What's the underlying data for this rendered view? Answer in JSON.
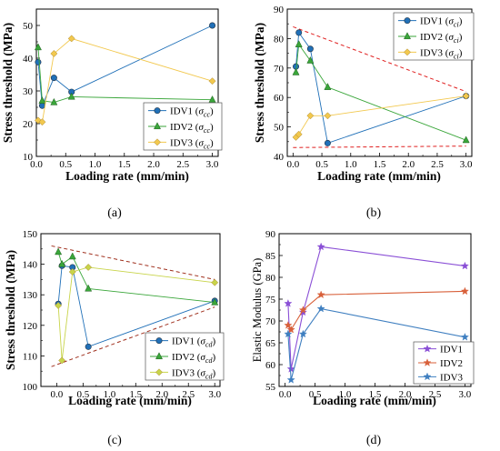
{
  "chart_data": [
    {
      "type": "scatter",
      "panel_label": "(a)",
      "xlabel": "Loading rate (mm/min)",
      "ylabel": "Stress threshold (MPa)",
      "xlim": [
        0,
        3.1
      ],
      "ylim": [
        10,
        55
      ],
      "xticks": [
        "0.0",
        "0.5",
        "1.0",
        "1.5",
        "2.0",
        "2.5",
        "3.0"
      ],
      "yticks": [
        "10",
        "20",
        "30",
        "40",
        "50"
      ],
      "legend_position": "bottom-right",
      "series": [
        {
          "name": "IDV1",
          "sub": "cc",
          "color": "#2070b8",
          "marker": "circle",
          "x": [
            0.03,
            0.1,
            0.3,
            0.6,
            3.0
          ],
          "y": [
            38.8,
            25.5,
            34,
            29.7,
            50
          ]
        },
        {
          "name": "IDV2",
          "sub": "cc",
          "color": "#3aa63a",
          "marker": "triangle",
          "x": [
            0.03,
            0.1,
            0.3,
            0.6,
            3.0
          ],
          "y": [
            43.3,
            27,
            26.5,
            28.2,
            27.3
          ]
        },
        {
          "name": "IDV3",
          "sub": "cc",
          "color": "#f2c84e",
          "marker": "diamond",
          "x": [
            0.03,
            0.1,
            0.3,
            0.6,
            3.0
          ],
          "y": [
            21,
            20.5,
            41.4,
            46,
            33
          ]
        }
      ]
    },
    {
      "type": "scatter",
      "panel_label": "(b)",
      "xlabel": "Loading rate (mm/min)",
      "ylabel": "Stress threshold (MPa)",
      "xlim": [
        -0.1,
        3.1
      ],
      "ylim": [
        40,
        90
      ],
      "xticks": [
        "0.0",
        "0.5",
        "1.0",
        "1.5",
        "2.0",
        "2.5",
        "3.0"
      ],
      "yticks": [
        "40",
        "50",
        "60",
        "70",
        "80",
        "90"
      ],
      "legend_position": "top-right",
      "series": [
        {
          "name": "IDV1",
          "sub": "ci",
          "color": "#2070b8",
          "marker": "circle",
          "x": [
            0.05,
            0.1,
            0.3,
            0.6,
            3.0
          ],
          "y": [
            70.5,
            82,
            76.5,
            44.5,
            60.5
          ]
        },
        {
          "name": "IDV2",
          "sub": "ci",
          "color": "#3aa63a",
          "marker": "triangle",
          "x": [
            0.05,
            0.1,
            0.3,
            0.6,
            3.0
          ],
          "y": [
            68.5,
            78,
            72.5,
            63.5,
            45.5
          ]
        },
        {
          "name": "IDV3",
          "sub": "ci",
          "color": "#f2c84e",
          "marker": "diamond",
          "x": [
            0.05,
            0.1,
            0.3,
            0.6,
            3.0
          ],
          "y": [
            46.5,
            47.5,
            53.8,
            53.8,
            60.5
          ]
        }
      ],
      "bounds": [
        {
          "x": [
            0.0,
            3.0
          ],
          "y": [
            84,
            62
          ]
        },
        {
          "x": [
            0.0,
            3.0
          ],
          "y": [
            43,
            43.5
          ]
        }
      ]
    },
    {
      "type": "scatter",
      "panel_label": "(c)",
      "xlabel": "Loading rate (mm/min)",
      "ylabel": "Stress threshold (MPa)",
      "xlim": [
        -0.3,
        3.1
      ],
      "ylim": [
        100,
        150
      ],
      "xticks": [
        "0.0",
        "0.5",
        "1.0",
        "1.5",
        "2.0",
        "2.5",
        "3.0"
      ],
      "yticks": [
        "100",
        "110",
        "120",
        "130",
        "140",
        "150"
      ],
      "legend_position": "bottom-right",
      "series": [
        {
          "name": "IDV1",
          "sub": "cd",
          "color": "#2070b8",
          "marker": "circle",
          "x": [
            0.03,
            0.1,
            0.3,
            0.6,
            3.0
          ],
          "y": [
            127,
            139.5,
            139,
            113,
            128
          ]
        },
        {
          "name": "IDV2",
          "sub": "cd",
          "color": "#3aa63a",
          "marker": "triangle",
          "x": [
            0.03,
            0.1,
            0.3,
            0.6,
            3.0
          ],
          "y": [
            144,
            140,
            142.5,
            132,
            127.5
          ]
        },
        {
          "name": "IDV3",
          "sub": "cd",
          "color": "#c8d44a",
          "marker": "diamond",
          "x": [
            0.03,
            0.1,
            0.3,
            0.6,
            3.0
          ],
          "y": [
            126.5,
            108.5,
            137.5,
            139,
            134
          ]
        }
      ],
      "bounds": [
        {
          "x": [
            -0.1,
            3.0
          ],
          "y": [
            146,
            135
          ]
        },
        {
          "x": [
            -0.1,
            3.0
          ],
          "y": [
            106.5,
            126
          ]
        }
      ]
    },
    {
      "type": "line",
      "panel_label": "(d)",
      "xlabel": "Loading rate (mm/min)",
      "ylabel": "Elastic Modulus (GPa)",
      "xlim": [
        -0.1,
        3.1
      ],
      "ylim": [
        55,
        90
      ],
      "xticks": [
        "0.0",
        "0.5",
        "1.0",
        "1.5",
        "2.0",
        "2.5",
        "3.0"
      ],
      "yticks": [
        "55",
        "60",
        "65",
        "70",
        "75",
        "80",
        "85",
        "90"
      ],
      "legend_position": "bottom-right",
      "series": [
        {
          "name": "IDV1",
          "color": "#8a4fd6",
          "marker": "star",
          "x": [
            0.05,
            0.1,
            0.3,
            0.6,
            3.0
          ],
          "y": [
            74,
            59,
            72,
            87,
            82.6
          ]
        },
        {
          "name": "IDV2",
          "color": "#d8603a",
          "marker": "star",
          "x": [
            0.05,
            0.1,
            0.3,
            0.6,
            3.0
          ],
          "y": [
            69,
            68,
            72.5,
            76,
            76.8
          ]
        },
        {
          "name": "IDV3",
          "color": "#3f7fc0",
          "marker": "star",
          "x": [
            0.05,
            0.1,
            0.3,
            0.6,
            3.0
          ],
          "y": [
            67,
            56.5,
            67,
            72.8,
            66.3
          ]
        }
      ]
    }
  ]
}
